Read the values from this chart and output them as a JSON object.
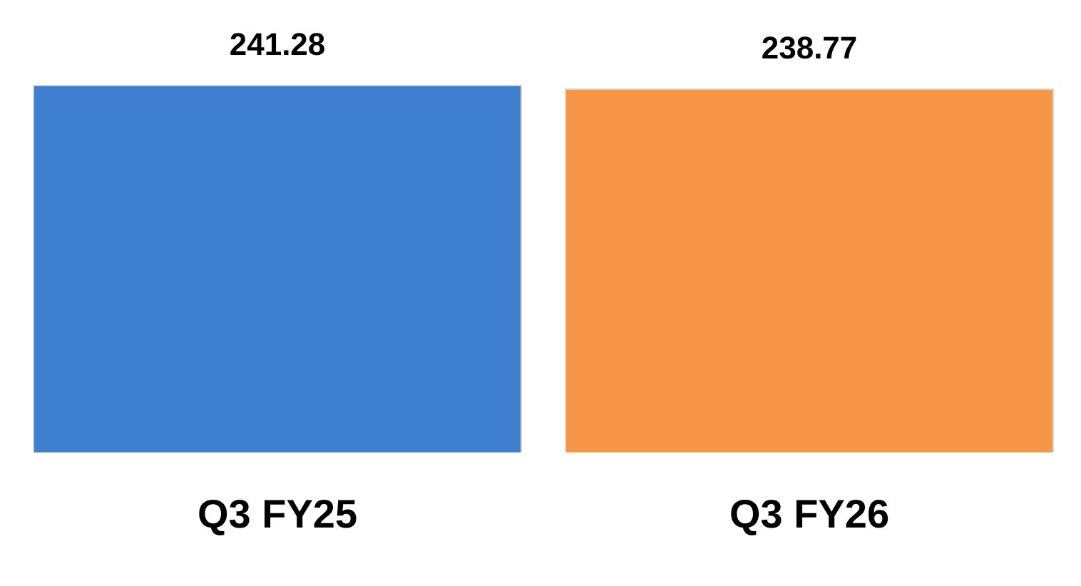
{
  "chart_data": {
    "type": "bar",
    "categories": [
      "Q3 FY25",
      "Q3 FY26"
    ],
    "values": [
      241.28,
      238.77
    ],
    "colors": [
      "#3f7fcf",
      "#f79646"
    ],
    "relative": false,
    "data_labels": true,
    "grid": false,
    "legend": false
  }
}
